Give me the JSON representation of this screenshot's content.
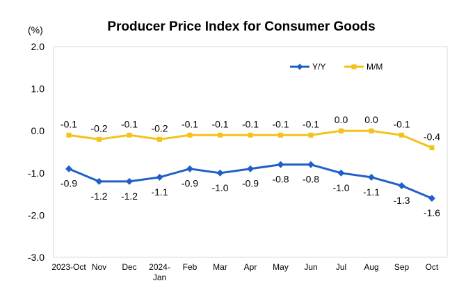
{
  "chart_data": {
    "type": "line",
    "title": "Producer Price Index for Consumer Goods",
    "unit_label": "(%)",
    "categories": [
      [
        "2023-Oct"
      ],
      [
        "Nov"
      ],
      [
        "Dec"
      ],
      [
        "2024-",
        "Jan"
      ],
      [
        "Feb"
      ],
      [
        "Mar"
      ],
      [
        "Apr"
      ],
      [
        "May"
      ],
      [
        "Jun"
      ],
      [
        "Jul"
      ],
      [
        "Aug"
      ],
      [
        "Sep"
      ],
      [
        "Oct"
      ]
    ],
    "ylim": [
      -3.0,
      2.0
    ],
    "yticks": [
      2.0,
      1.0,
      0.0,
      -1.0,
      -2.0,
      -3.0
    ],
    "ytick_labels": [
      "2.0",
      "1.0",
      "0.0",
      "-1.0",
      "-2.0",
      "-3.0"
    ],
    "grid": false,
    "legend_position": "top-right",
    "series": [
      {
        "name": "Y/Y",
        "color": "#1f5fc8",
        "marker": "diamond",
        "values": [
          -0.9,
          -1.2,
          -1.2,
          -1.1,
          -0.9,
          -1.0,
          -0.9,
          -0.8,
          -0.8,
          -1.0,
          -1.1,
          -1.3,
          -1.6
        ],
        "labels": [
          "-0.9",
          "-1.2",
          "-1.2",
          "-1.1",
          "-0.9",
          "-1.0",
          "-0.9",
          "-0.8",
          "-0.8",
          "-1.0",
          "-1.1",
          "-1.3",
          "-1.6"
        ],
        "label_position": "below"
      },
      {
        "name": "M/M",
        "color": "#f5c21b",
        "marker": "square",
        "values": [
          -0.1,
          -0.2,
          -0.1,
          -0.2,
          -0.1,
          -0.1,
          -0.1,
          -0.1,
          -0.1,
          0.0,
          0.0,
          -0.1,
          -0.4
        ],
        "labels": [
          "-0.1",
          "-0.2",
          "-0.1",
          "-0.2",
          "-0.1",
          "-0.1",
          "-0.1",
          "-0.1",
          "-0.1",
          "0.0",
          "0.0",
          "-0.1",
          "-0.4"
        ],
        "label_position": "above"
      }
    ]
  }
}
